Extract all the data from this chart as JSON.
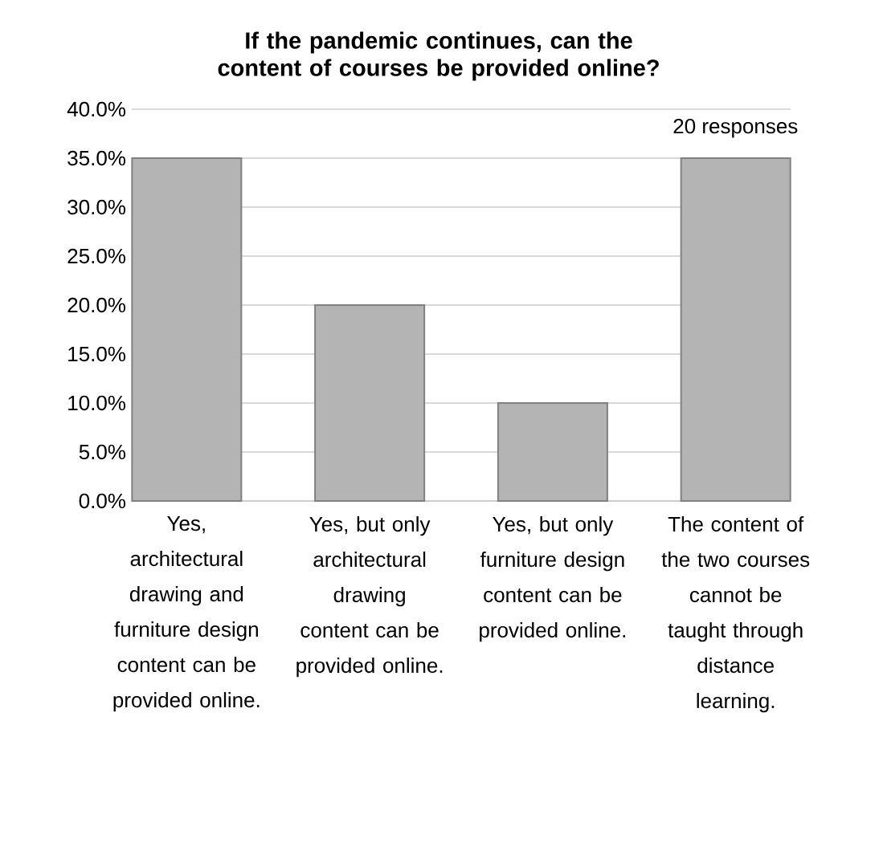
{
  "chart_data": {
    "type": "bar",
    "title": "If the pandemic continues, can the content of courses be provided online?",
    "categories": [
      "Yes, architectural drawing and furniture design content can be provided online.",
      "Yes, but only architectural drawing content can be provided online.",
      "Yes, but only furniture design content can be provided online.",
      "The content of the two courses cannot be taught through distance learning."
    ],
    "values": [
      35,
      20,
      10,
      35
    ],
    "color": "#b4b4b4",
    "ylim": [
      0,
      40
    ],
    "yticks": [
      {
        "value": 0,
        "label": "0.0%"
      },
      {
        "value": 5,
        "label": "5.0%"
      },
      {
        "value": 10,
        "label": "10.0%"
      },
      {
        "value": 15,
        "label": "15.0%"
      },
      {
        "value": 20,
        "label": "20.0%"
      },
      {
        "value": 25,
        "label": "25.0%"
      },
      {
        "value": 30,
        "label": "30.0%"
      },
      {
        "value": 35,
        "label": "35.0%"
      },
      {
        "value": 40,
        "label": "40.0%"
      }
    ],
    "grid": "y",
    "annotations": [
      "20 responses"
    ]
  }
}
